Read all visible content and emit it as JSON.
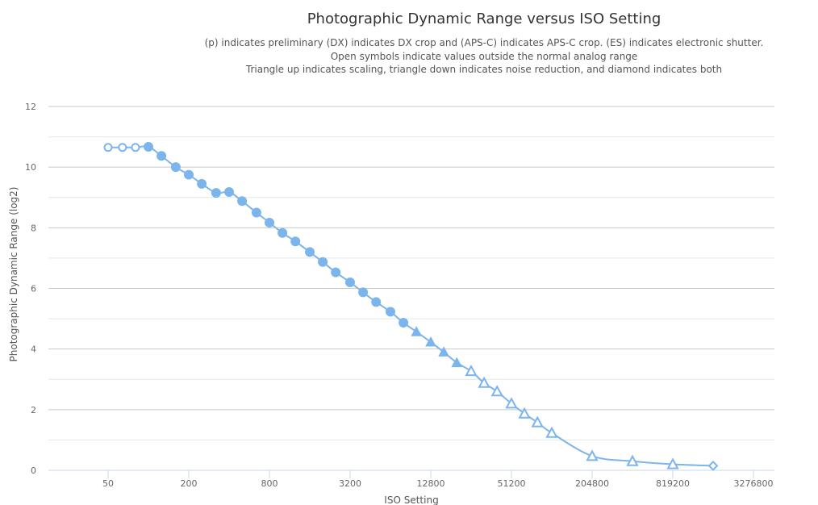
{
  "chart_data": {
    "type": "line",
    "title": "Photographic Dynamic Range versus ISO Setting",
    "subtitle": [
      "(p) indicates preliminary (DX) indicates DX crop and (APS-C) indicates APS-C crop. (ES) indicates electronic shutter.",
      "Open symbols indicate values outside the normal analog range",
      "Triangle up indicates scaling, triangle down indicates noise reduction, and diamond indicates both"
    ],
    "xlabel": "ISO Setting",
    "ylabel": "Photographic Dynamic Range (log2)",
    "x_scale": "log2",
    "x_ticks": [
      50,
      200,
      800,
      3200,
      12800,
      51200,
      204800,
      819200,
      3276800
    ],
    "y_ticks": [
      0,
      2,
      4,
      6,
      8,
      10,
      12
    ],
    "ylim": [
      0,
      12
    ],
    "color": "#7cb5ec",
    "series": [
      {
        "name": "Photographic Dynamic Range",
        "points": [
          {
            "x": 50,
            "y": 10.65,
            "m": "circle-open"
          },
          {
            "x": 64,
            "y": 10.65,
            "m": "circle-open"
          },
          {
            "x": 80,
            "y": 10.65,
            "m": "circle-open"
          },
          {
            "x": 100,
            "y": 10.67,
            "m": "circle"
          },
          {
            "x": 125,
            "y": 10.37,
            "m": "circle"
          },
          {
            "x": 160,
            "y": 10.0,
            "m": "circle"
          },
          {
            "x": 200,
            "y": 9.75,
            "m": "circle"
          },
          {
            "x": 250,
            "y": 9.45,
            "m": "circle"
          },
          {
            "x": 320,
            "y": 9.15,
            "m": "circle"
          },
          {
            "x": 400,
            "y": 9.18,
            "m": "circle"
          },
          {
            "x": 500,
            "y": 8.88,
            "m": "circle"
          },
          {
            "x": 640,
            "y": 8.5,
            "m": "circle"
          },
          {
            "x": 800,
            "y": 8.17,
            "m": "circle"
          },
          {
            "x": 1000,
            "y": 7.83,
            "m": "circle"
          },
          {
            "x": 1250,
            "y": 7.55,
            "m": "circle"
          },
          {
            "x": 1600,
            "y": 7.2,
            "m": "circle"
          },
          {
            "x": 2000,
            "y": 6.87,
            "m": "circle"
          },
          {
            "x": 2500,
            "y": 6.53,
            "m": "circle"
          },
          {
            "x": 3200,
            "y": 6.2,
            "m": "circle"
          },
          {
            "x": 4000,
            "y": 5.87,
            "m": "circle"
          },
          {
            "x": 5000,
            "y": 5.55,
            "m": "circle"
          },
          {
            "x": 6400,
            "y": 5.23,
            "m": "circle"
          },
          {
            "x": 8000,
            "y": 4.87,
            "m": "circle"
          },
          {
            "x": 10000,
            "y": 4.57,
            "m": "triangle"
          },
          {
            "x": 12800,
            "y": 4.23,
            "m": "triangle"
          },
          {
            "x": 16000,
            "y": 3.9,
            "m": "triangle"
          },
          {
            "x": 20000,
            "y": 3.55,
            "m": "triangle"
          },
          {
            "x": 25600,
            "y": 3.27,
            "m": "triangle-open"
          },
          {
            "x": 32000,
            "y": 2.88,
            "m": "triangle-open"
          },
          {
            "x": 40000,
            "y": 2.6,
            "m": "triangle-open"
          },
          {
            "x": 51200,
            "y": 2.2,
            "m": "triangle-open"
          },
          {
            "x": 64000,
            "y": 1.87,
            "m": "triangle-open"
          },
          {
            "x": 80000,
            "y": 1.58,
            "m": "triangle-open"
          },
          {
            "x": 102400,
            "y": 1.23,
            "m": "triangle-open"
          },
          {
            "x": 204800,
            "y": 0.47,
            "m": "triangle-open"
          },
          {
            "x": 409600,
            "y": 0.3,
            "m": "triangle-open"
          },
          {
            "x": 819200,
            "y": 0.2,
            "m": "triangle-open"
          },
          {
            "x": 1638400,
            "y": 0.15,
            "m": "diamond-open"
          }
        ]
      }
    ]
  }
}
